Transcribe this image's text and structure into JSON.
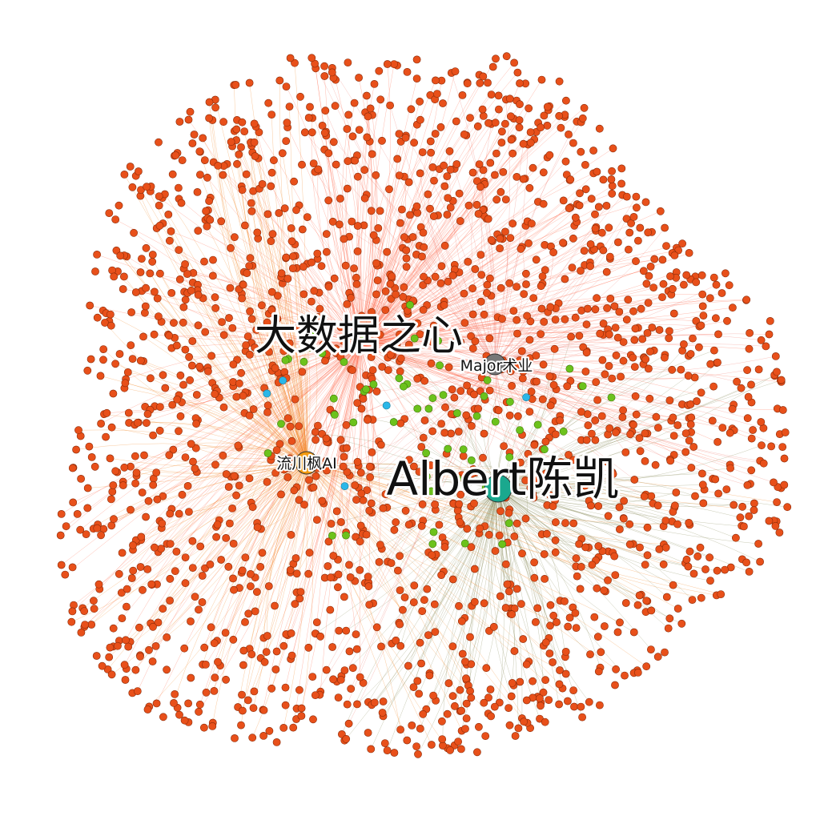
{
  "graph": {
    "hubs": [
      {
        "id": "albert",
        "label": "Albert陈凯"
      },
      {
        "id": "bigdata",
        "label": "大数据之心"
      },
      {
        "id": "major",
        "label": "Major术业"
      },
      {
        "id": "liuchuan",
        "label": "流川枫AI"
      }
    ],
    "colors": {
      "background": "#ffffff",
      "leaf_node": "#e8501a",
      "leaf_stroke": "#8a2a08",
      "core_node": "#6cc21c",
      "accent_node": "#2ab7e8",
      "hub_albert": "#1aa88e",
      "hub_major": "#777777",
      "hub_liuchuan": "#f39a10",
      "edge_bigdata": "#ff6a4d",
      "edge_liuchuan": "#f28a2a",
      "edge_albert": "#8a8c5c",
      "edge_major": "#f07f73"
    },
    "style": {
      "layout": "radial force-directed cluster",
      "edges": "curved",
      "approx_leaf_count": 2000
    }
  }
}
